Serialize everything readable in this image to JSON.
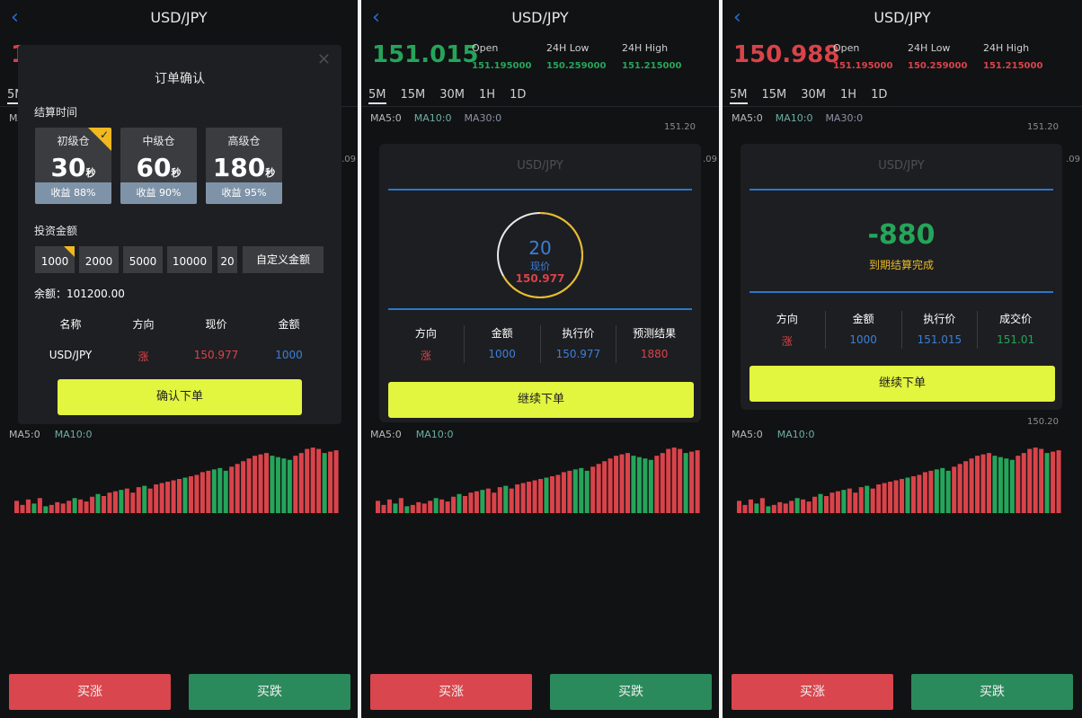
{
  "pair": "USD/JPY",
  "timeframes": [
    "5M",
    "15M",
    "30M",
    "1H",
    "1D"
  ],
  "ma_main": {
    "ma5": "MA5:0",
    "ma10": "MA10:0",
    "ma30": "MA30:0"
  },
  "ma_vol": {
    "ma5": "MA5:0",
    "ma10": "MA10:0"
  },
  "stats": {
    "open_label": "Open",
    "open": "151.195000",
    "low_label": "24H Low",
    "low": "150.259000",
    "high_label": "24H High",
    "high": "151.215000"
  },
  "buttons": {
    "buy_up": "买涨",
    "buy_down": "买跌"
  },
  "colors": {
    "up": "#d9434a",
    "down": "#25a55a",
    "accent": "#e2f53f",
    "line": "#2a77c9"
  },
  "panel1": {
    "price_partial": "1",
    "axis_right": ".09",
    "modal": {
      "title": "订单确认",
      "close_icon": "close-icon",
      "settle_label": "结算时间",
      "tiers": [
        {
          "name": "初级仓",
          "time": "30",
          "unit": "秒",
          "profit": "收益 88%",
          "selected": true
        },
        {
          "name": "中级仓",
          "time": "60",
          "unit": "秒",
          "profit": "收益 90%",
          "selected": false
        },
        {
          "name": "高级仓",
          "time": "180",
          "unit": "秒",
          "profit": "收益 95%",
          "selected": false
        }
      ],
      "invest_label": "投资金额",
      "amounts": [
        "1000",
        "2000",
        "5000",
        "10000",
        "20"
      ],
      "custom_amount": "自定义金额",
      "balance": "余额：101200.00",
      "headers": [
        "名称",
        "方向",
        "现价",
        "金额"
      ],
      "row": {
        "name": "USD/JPY",
        "direction": "涨",
        "price": "150.977",
        "amount": "1000"
      },
      "confirm": "确认下单"
    }
  },
  "panel2": {
    "price": "151.015",
    "axis_top": "151.20",
    "axis_right": ".09",
    "card": {
      "title": "USD/JPY",
      "countdown": "20",
      "now_label": "现价",
      "now_price": "150.977",
      "progress": 0.667,
      "headers": [
        "方向",
        "金额",
        "执行价",
        "预测结果"
      ],
      "values": [
        "涨",
        "1000",
        "150.977",
        "1880"
      ],
      "continue": "继续下单"
    }
  },
  "panel3": {
    "price": "150.988",
    "axis_top": "151.20",
    "axis_bottom": "150.20",
    "axis_right": ".09",
    "card": {
      "title": "USD/JPY",
      "result": "-880",
      "status": "到期结算完成",
      "headers": [
        "方向",
        "金额",
        "执行价",
        "成交价"
      ],
      "values": [
        "涨",
        "1000",
        "151.015",
        "151.01"
      ],
      "continue": "继续下单"
    }
  },
  "volume": {
    "values": [
      0.18,
      0.12,
      0.2,
      0.14,
      0.22,
      0.1,
      0.12,
      0.16,
      0.14,
      0.18,
      0.22,
      0.2,
      0.17,
      0.24,
      0.28,
      0.25,
      0.3,
      0.32,
      0.34,
      0.36,
      0.3,
      0.38,
      0.4,
      0.36,
      0.42,
      0.44,
      0.46,
      0.48,
      0.5,
      0.52,
      0.54,
      0.56,
      0.6,
      0.62,
      0.64,
      0.66,
      0.62,
      0.68,
      0.72,
      0.76,
      0.8,
      0.84,
      0.86,
      0.88,
      0.84,
      0.82,
      0.8,
      0.78,
      0.84,
      0.88,
      0.94,
      0.96,
      0.94,
      0.88,
      0.9,
      0.92
    ],
    "down": [
      3,
      5,
      10,
      14,
      18,
      22,
      29,
      34,
      35,
      36,
      44,
      45,
      46,
      47,
      53
    ]
  }
}
